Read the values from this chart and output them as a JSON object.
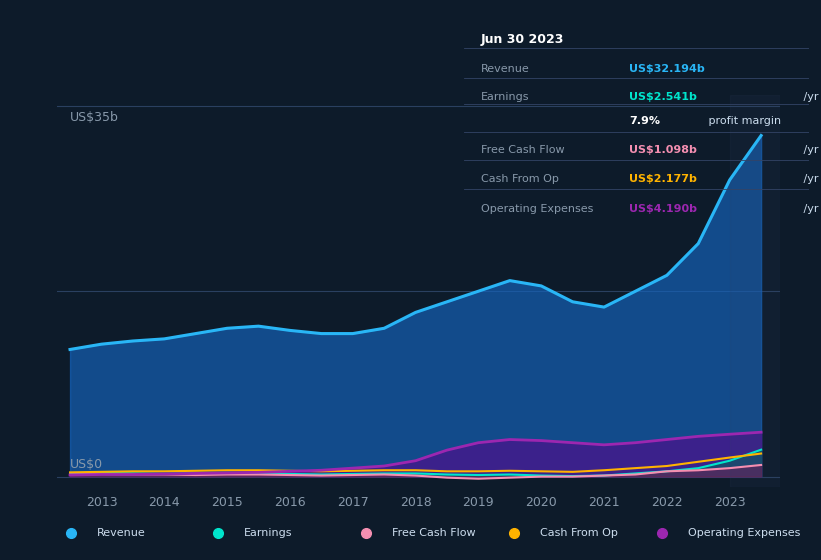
{
  "background_color": "#0d1b2a",
  "plot_bg_color": "#0d1b2a",
  "grid_color": "#1e3050",
  "ylabel_top": "US$35b",
  "ylabel_bottom": "US$0",
  "years": [
    2012.5,
    2013.0,
    2013.5,
    2014.0,
    2014.5,
    2015.0,
    2015.5,
    2016.0,
    2016.5,
    2017.0,
    2017.5,
    2018.0,
    2018.5,
    2019.0,
    2019.5,
    2020.0,
    2020.5,
    2021.0,
    2021.5,
    2022.0,
    2022.5,
    2023.0,
    2023.5
  ],
  "revenue": [
    12.0,
    12.5,
    12.8,
    13.0,
    13.5,
    14.0,
    14.2,
    13.8,
    13.5,
    13.5,
    14.0,
    15.5,
    16.5,
    17.5,
    18.5,
    18.0,
    16.5,
    16.0,
    17.5,
    19.0,
    22.0,
    28.0,
    32.194
  ],
  "earnings": [
    0.3,
    0.35,
    0.3,
    0.25,
    0.3,
    0.35,
    0.3,
    0.25,
    0.2,
    0.25,
    0.3,
    0.3,
    0.2,
    0.15,
    0.2,
    0.1,
    0.05,
    0.1,
    0.3,
    0.5,
    0.8,
    1.5,
    2.541
  ],
  "free_cash_flow": [
    0.2,
    0.25,
    0.2,
    0.2,
    0.15,
    0.2,
    0.2,
    0.15,
    0.1,
    0.15,
    0.2,
    0.1,
    -0.1,
    -0.2,
    -0.1,
    0.0,
    0.0,
    0.1,
    0.2,
    0.5,
    0.6,
    0.8,
    1.098
  ],
  "cash_from_op": [
    0.4,
    0.45,
    0.5,
    0.5,
    0.55,
    0.6,
    0.6,
    0.55,
    0.5,
    0.55,
    0.6,
    0.6,
    0.5,
    0.5,
    0.55,
    0.5,
    0.45,
    0.6,
    0.8,
    1.0,
    1.4,
    1.8,
    2.177
  ],
  "operating_expenses": [
    0.15,
    0.2,
    0.2,
    0.25,
    0.3,
    0.35,
    0.4,
    0.5,
    0.6,
    0.8,
    1.0,
    1.5,
    2.5,
    3.2,
    3.5,
    3.4,
    3.2,
    3.0,
    3.2,
    3.5,
    3.8,
    4.0,
    4.19
  ],
  "revenue_color": "#29b6f6",
  "earnings_color": "#00e5cc",
  "free_cash_flow_color": "#f48fb1",
  "cash_from_op_color": "#ffb300",
  "operating_expenses_color": "#9c27b0",
  "revenue_fill": "#1565c0",
  "earnings_fill": "#00695c",
  "free_cash_flow_fill": "#880e4f",
  "operating_expenses_fill": "#4a148c",
  "info_box": {
    "title": "Jun 30 2023",
    "rows": [
      {
        "label": "Revenue",
        "value": "US$32.194b",
        "unit": " /yr",
        "color": "#29b6f6"
      },
      {
        "label": "Earnings",
        "value": "US$2.541b",
        "unit": " /yr",
        "color": "#00e5cc"
      },
      {
        "label": "",
        "value": "7.9%",
        "unit": " profit margin",
        "color": "#ffffff"
      },
      {
        "label": "Free Cash Flow",
        "value": "US$1.098b",
        "unit": " /yr",
        "color": "#f48fb1"
      },
      {
        "label": "Cash From Op",
        "value": "US$2.177b",
        "unit": " /yr",
        "color": "#ffb300"
      },
      {
        "label": "Operating Expenses",
        "value": "US$4.190b",
        "unit": " /yr",
        "color": "#9c27b0"
      }
    ]
  },
  "legend_items": [
    {
      "label": "Revenue",
      "color": "#29b6f6"
    },
    {
      "label": "Earnings",
      "color": "#00e5cc"
    },
    {
      "label": "Free Cash Flow",
      "color": "#f48fb1"
    },
    {
      "label": "Cash From Op",
      "color": "#ffb300"
    },
    {
      "label": "Operating Expenses",
      "color": "#9c27b0"
    }
  ],
  "xlim": [
    2012.3,
    2023.8
  ],
  "ylim": [
    -1.0,
    36.0
  ],
  "xticks": [
    2013,
    2014,
    2015,
    2016,
    2017,
    2018,
    2019,
    2020,
    2021,
    2022,
    2023
  ]
}
